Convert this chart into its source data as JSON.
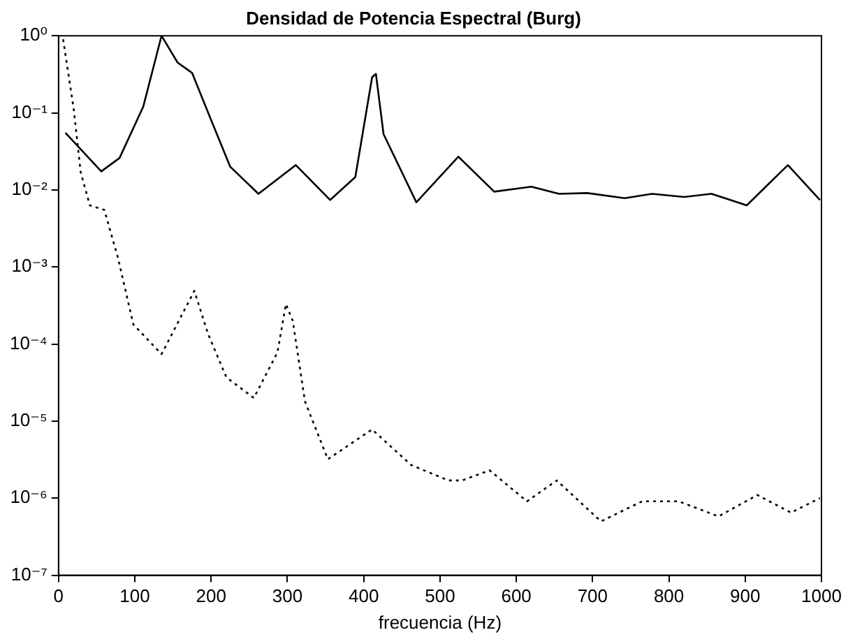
{
  "chart_data": {
    "type": "line",
    "title": "Densidad de Potencia Espectral (Burg)",
    "xlabel": "frecuencia (Hz)",
    "log": "y",
    "grid": false,
    "legend": false,
    "marker": "none",
    "xlim": [
      0,
      1000
    ],
    "xticks": [
      0,
      100,
      200,
      300,
      400,
      500,
      600,
      700,
      800,
      900,
      1000
    ],
    "ylim": [
      1e-07,
      1
    ],
    "yticks": [
      {
        "value": 1,
        "label": "10⁰"
      },
      {
        "value": 0.1,
        "label": "10⁻¹"
      },
      {
        "value": 0.01,
        "label": "10⁻²"
      },
      {
        "value": 0.001,
        "label": "10⁻³"
      },
      {
        "value": 0.0001,
        "label": "10⁻⁴"
      },
      {
        "value": 1e-05,
        "label": "10⁻⁵"
      },
      {
        "value": 1e-06,
        "label": "10⁻⁶"
      },
      {
        "value": 1e-07,
        "label": "10⁻⁷"
      }
    ],
    "series": [
      {
        "color": "#000000",
        "line_style": "solid",
        "x": [
          9,
          56,
          80,
          111,
          135,
          156,
          175,
          198,
          225,
          262,
          311,
          356,
          389,
          411,
          416,
          426,
          469,
          524,
          571,
          620,
          656,
          693,
          742,
          778,
          820,
          856,
          902,
          956,
          998
        ],
        "values": [
          0.055,
          0.0174,
          0.026,
          0.12,
          1,
          0.45,
          0.33,
          0.09,
          0.02,
          0.0089,
          0.021,
          0.0074,
          0.0147,
          0.29,
          0.32,
          0.053,
          0.0069,
          0.027,
          0.0095,
          0.011,
          0.0089,
          0.0091,
          0.0078,
          0.0089,
          0.0081,
          0.0089,
          0.0063,
          0.021,
          0.0074
        ]
      },
      {
        "color": "#000000",
        "line_style": "dotted",
        "x": [
          6,
          20,
          29,
          41,
          60,
          78,
          98,
          135,
          178,
          196,
          220,
          256,
          287,
          298,
          307,
          323,
          353,
          411,
          462,
          511,
          529,
          565,
          614,
          653,
          711,
          765,
          813,
          865,
          916,
          960,
          998
        ],
        "values": [
          0.9,
          0.11,
          0.017,
          0.0063,
          0.0055,
          0.0013,
          0.00018,
          7.4e-05,
          0.00049,
          0.000135,
          3.7e-05,
          2e-05,
          7.8e-05,
          0.00033,
          0.0002,
          1.8e-05,
          3.2e-06,
          7.8e-06,
          2.7e-06,
          1.7e-06,
          1.7e-06,
          2.3e-06,
          9.1e-07,
          1.7e-06,
          5e-07,
          9.1e-07,
          9.1e-07,
          5.8e-07,
          1.1e-06,
          6.5e-07,
          1e-06
        ]
      }
    ]
  }
}
